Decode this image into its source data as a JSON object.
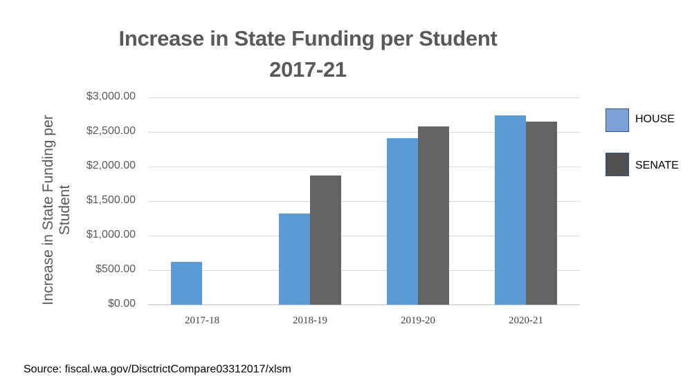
{
  "chart_data": {
    "type": "bar",
    "title": "Increase in State Funding per Student 2017-21",
    "title_lines": [
      "Increase in State Funding per Student",
      "2017-21"
    ],
    "xlabel": "",
    "ylabel": "Increase in State Funding per Student",
    "ylabel_lines": [
      "Increase in State Funding per",
      "Student"
    ],
    "categories": [
      "2017-18",
      "2018-19",
      "2019-20",
      "2020-21"
    ],
    "series": [
      {
        "name": "HOUSE",
        "color": "#5B9BD5",
        "legend_color": "#7DA2D8",
        "values": [
          620,
          1320,
          2410,
          2740
        ]
      },
      {
        "name": "SENATE",
        "color": "#636363",
        "legend_color": "#505050",
        "values": [
          0,
          1870,
          2580,
          2650
        ]
      }
    ],
    "ylim": [
      0,
      3000
    ],
    "yticks": [
      0,
      500,
      1000,
      1500,
      2000,
      2500,
      3000
    ],
    "ytick_labels": [
      "$0.00",
      "$500.00",
      "$1,000.00",
      "$1,500.00",
      "$2,000.00",
      "$2,500.00",
      "$3,000.00"
    ],
    "grid": true,
    "legend_position": "right"
  },
  "source": "Source: fiscal.wa.gov/DisctrictCompare03312017/xlsm"
}
